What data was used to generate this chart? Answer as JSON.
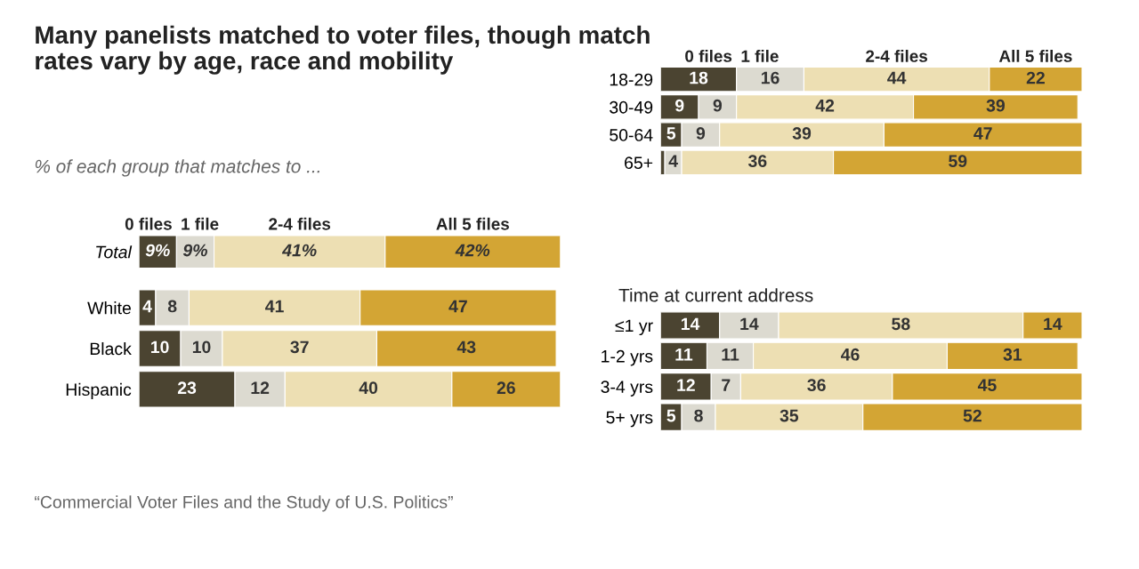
{
  "chart_data": [
    {
      "type": "bar",
      "orientation": "horizontal",
      "stacked": true,
      "title": "Many panelists matched to voter files, though match rates vary by age, race and mobility",
      "subtitle": "% of each group that matches to ...",
      "categories": [
        "Total"
      ],
      "series": [
        {
          "name": "0 files",
          "color": "#4b4431",
          "values": [
            9
          ],
          "value_labels": [
            "9%"
          ]
        },
        {
          "name": "1 file",
          "color": "#dcdad0",
          "values": [
            9
          ],
          "value_labels": [
            "9%"
          ]
        },
        {
          "name": "2-4 files",
          "color": "#eddfb3",
          "values": [
            41
          ],
          "value_labels": [
            "41%"
          ]
        },
        {
          "name": "All 5 files",
          "color": "#d3a534",
          "values": [
            42
          ],
          "value_labels": [
            "42%"
          ]
        }
      ]
    },
    {
      "type": "bar",
      "orientation": "horizontal",
      "stacked": true,
      "categories": [
        "White",
        "Black",
        "Hispanic"
      ],
      "annotations": [
        "“Commercial Voter Files and the Study of U.S. Politics”"
      ],
      "series": [
        {
          "color": "#4b4431",
          "values": [
            4,
            10,
            23
          ],
          "value_labels": [
            "4",
            "10",
            "23"
          ]
        },
        {
          "color": "#dcdad0",
          "values": [
            8,
            10,
            12
          ],
          "value_labels": [
            "8",
            "10",
            "12"
          ]
        },
        {
          "color": "#eddfb3",
          "values": [
            41,
            37,
            40
          ],
          "value_labels": [
            "41",
            "37",
            "40"
          ]
        },
        {
          "color": "#d3a534",
          "values": [
            47,
            43,
            26
          ],
          "value_labels": [
            "47",
            "43",
            "26"
          ]
        }
      ]
    },
    {
      "type": "bar",
      "orientation": "horizontal",
      "stacked": true,
      "categories": [
        "18-29",
        "30-49",
        "50-64",
        "65+"
      ],
      "series": [
        {
          "name": "0 files",
          "color": "#4b4431",
          "values": [
            18,
            9,
            5,
            1
          ],
          "value_labels": [
            "18",
            "9",
            "5",
            null
          ]
        },
        {
          "name": "1 file",
          "color": "#dcdad0",
          "values": [
            16,
            9,
            9,
            4
          ],
          "value_labels": [
            "16",
            "9",
            "9",
            "4"
          ]
        },
        {
          "name": "2-4 files",
          "color": "#eddfb3",
          "values": [
            44,
            42,
            39,
            36
          ],
          "value_labels": [
            "44",
            "42",
            "39",
            "36"
          ]
        },
        {
          "name": "All 5 files",
          "color": "#d3a534",
          "values": [
            22,
            39,
            47,
            59
          ],
          "value_labels": [
            "22",
            "39",
            "47",
            "59"
          ]
        }
      ]
    },
    {
      "type": "bar",
      "orientation": "horizontal",
      "stacked": true,
      "title": "Time at current address",
      "categories": [
        "≤1 yr",
        "1-2 yrs",
        "3-4 yrs",
        "5+ yrs"
      ],
      "series": [
        {
          "color": "#4b4431",
          "values": [
            14,
            11,
            12,
            5
          ],
          "value_labels": [
            "14",
            "11",
            "12",
            "5"
          ]
        },
        {
          "color": "#dcdad0",
          "values": [
            14,
            11,
            7,
            8
          ],
          "value_labels": [
            "14",
            "11",
            "7",
            "8"
          ]
        },
        {
          "color": "#eddfb3",
          "values": [
            58,
            46,
            36,
            35
          ],
          "value_labels": [
            "58",
            "46",
            "36",
            "35"
          ]
        },
        {
          "color": "#d3a534",
          "values": [
            14,
            31,
            45,
            52
          ],
          "value_labels": [
            "14",
            "31",
            "45",
            "52"
          ]
        }
      ]
    }
  ]
}
